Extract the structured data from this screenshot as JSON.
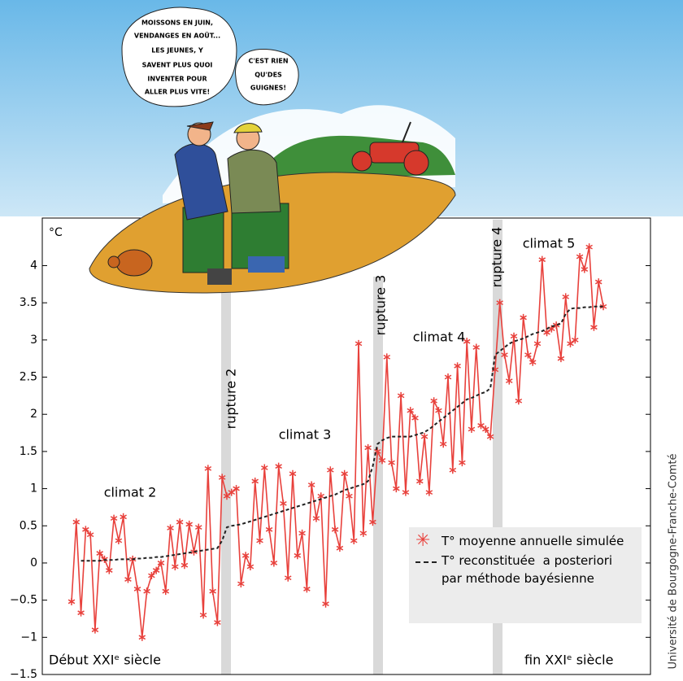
{
  "chart_data": {
    "type": "line",
    "y_label": "°C",
    "ylim": [
      -1.5,
      4.64
    ],
    "yticks": [
      {
        "value": -1.5,
        "label": "−1.5"
      },
      {
        "value": -1,
        "label": "−1"
      },
      {
        "value": -0.5,
        "label": "−0.5"
      },
      0,
      0.5,
      1,
      1.5,
      2,
      2.5,
      3,
      3.5,
      4
    ],
    "annotations": [
      "rupture 2",
      "rupture 3",
      "rupture 4",
      "climat 2",
      "climat 3",
      "climat 4",
      "climat 5",
      "Début XXIᵉ siècle",
      "fin XXIᵉ siècle"
    ],
    "credit": "Université de Bourgogne-Franche-Comté",
    "series": [
      {
        "name": "T° moyenne annuelle simulée",
        "color": "#e8413c",
        "values": [
          -0.52,
          0.55,
          -0.67,
          0.45,
          0.38,
          -0.9,
          0.13,
          0.05,
          -0.1,
          0.6,
          0.3,
          0.62,
          -0.22,
          0.05,
          -0.35,
          -1.0,
          -0.38,
          -0.17,
          -0.1,
          0.0,
          -0.38,
          0.47,
          -0.05,
          0.55,
          -0.03,
          0.52,
          0.15,
          0.48,
          -0.7,
          1.27,
          -0.38,
          -0.8,
          1.15,
          0.9,
          0.95,
          1.0,
          -0.28,
          0.1,
          -0.05,
          1.1,
          0.3,
          1.28,
          0.45,
          0.0,
          1.3,
          0.8,
          -0.2,
          1.2,
          0.1,
          0.4,
          -0.35,
          1.05,
          0.6,
          0.9,
          -0.55,
          1.25,
          0.45,
          0.2,
          1.2,
          0.9,
          0.3,
          2.95,
          0.4,
          1.55,
          0.55,
          1.5,
          1.38,
          2.77,
          1.35,
          1.0,
          2.25,
          0.95,
          2.05,
          1.95,
          1.1,
          1.7,
          0.95,
          2.18,
          2.05,
          1.6,
          2.5,
          1.25,
          2.65,
          1.35,
          2.98,
          1.8,
          2.9,
          1.85,
          1.8,
          1.7,
          2.6,
          3.5,
          2.8,
          2.45,
          3.05,
          2.18,
          3.3,
          2.8,
          2.7,
          2.95,
          4.08,
          3.1,
          3.15,
          3.2,
          2.75,
          3.58,
          2.95,
          3.0,
          4.12,
          3.95,
          4.25,
          3.17,
          3.78,
          3.45
        ]
      },
      {
        "name": "T° reconstituée  a posteriori par méthode bayésienne",
        "color": "#222222",
        "values": [
          null,
          null,
          0.03,
          0.03,
          0.03,
          0.03,
          0.03,
          0.04,
          0.04,
          0.04,
          0.05,
          0.05,
          0.05,
          0.05,
          0.06,
          0.06,
          0.07,
          0.07,
          0.08,
          0.08,
          0.09,
          0.1,
          0.11,
          0.12,
          0.13,
          0.14,
          0.15,
          0.16,
          0.17,
          0.18,
          0.19,
          0.2,
          0.3,
          0.48,
          0.5,
          0.51,
          0.52,
          0.54,
          0.56,
          0.58,
          0.6,
          0.62,
          0.64,
          0.66,
          0.68,
          0.7,
          0.72,
          0.74,
          0.76,
          0.78,
          0.8,
          0.82,
          0.84,
          0.86,
          0.88,
          0.9,
          0.92,
          0.95,
          0.98,
          1.0,
          1.02,
          1.04,
          1.06,
          1.1,
          1.3,
          1.6,
          1.65,
          1.68,
          1.7,
          1.7,
          1.7,
          1.7,
          1.7,
          1.72,
          1.74,
          1.76,
          1.8,
          1.85,
          1.9,
          1.95,
          2.0,
          2.05,
          2.1,
          2.15,
          2.2,
          2.22,
          2.25,
          2.28,
          2.3,
          2.35,
          2.8,
          2.85,
          2.9,
          2.95,
          2.98,
          3.0,
          3.02,
          3.05,
          3.08,
          3.1,
          3.12,
          3.15,
          3.18,
          3.2,
          3.22,
          3.35,
          3.42,
          3.43,
          3.43,
          3.44,
          3.44,
          3.45,
          3.45,
          3.45
        ]
      }
    ]
  },
  "illustration": {
    "bubbles": [
      [
        "MOISSONS EN JUIN,",
        "VENDANGES EN AOÛT...",
        "LES JEUNES, Y",
        "SAVENT PLUS QUOI",
        "INVENTER POUR",
        "ALLER PLUS VITE!"
      ],
      [
        "C'EST RIEN",
        "QU'DES",
        "GUIGNES!"
      ]
    ]
  }
}
